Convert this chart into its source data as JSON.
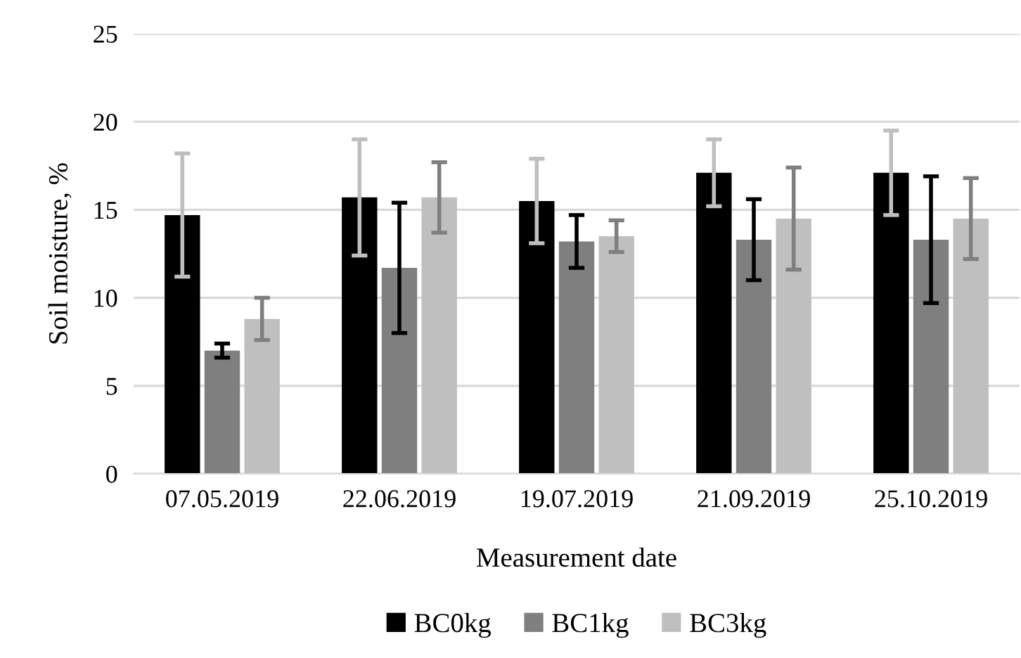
{
  "chart_data": {
    "type": "bar",
    "xlabel": "Measurement date",
    "ylabel": "Soil moisture, %",
    "categories": [
      "07.05.2019",
      "22.06.2019",
      "19.07.2019",
      "21.09.2019",
      "25.10.2019"
    ],
    "series": [
      {
        "name": "BC0kg",
        "color": "#000000",
        "values": [
          14.7,
          15.7,
          15.5,
          17.1,
          17.1
        ],
        "errors": [
          3.5,
          3.3,
          2.4,
          1.9,
          2.4
        ]
      },
      {
        "name": "BC1kg",
        "color": "#7f7f7f",
        "values": [
          7.0,
          11.7,
          13.2,
          13.3,
          13.3
        ],
        "errors": [
          0.4,
          3.7,
          1.5,
          2.3,
          3.6
        ]
      },
      {
        "name": "BC3kg",
        "color": "#bfbfbf",
        "values": [
          8.8,
          15.7,
          13.5,
          14.5,
          14.5
        ],
        "errors": [
          1.2,
          2.0,
          0.9,
          2.9,
          2.3
        ]
      }
    ],
    "ylim": [
      0,
      25
    ],
    "yticks": [
      0,
      5,
      10,
      15,
      20,
      25
    ],
    "grid": "y",
    "legend": "bottom"
  }
}
